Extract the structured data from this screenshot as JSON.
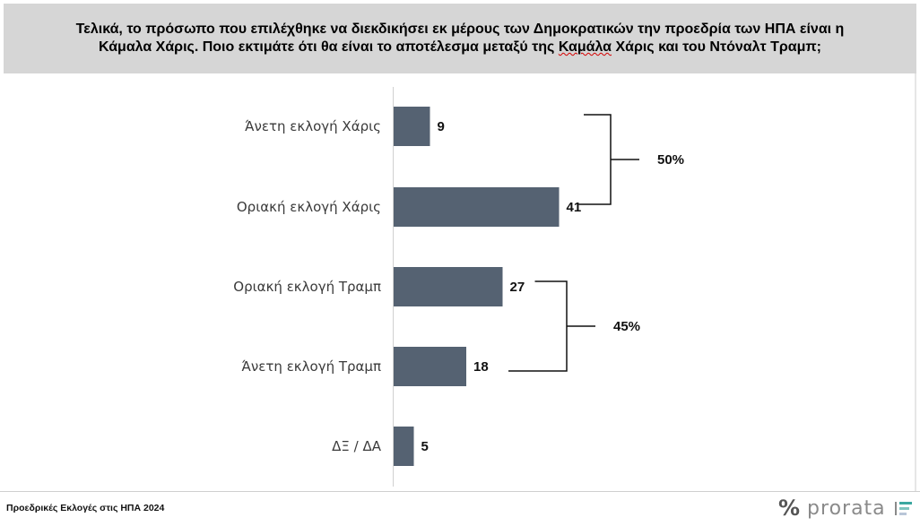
{
  "header": {
    "line1": "Τελικά, το πρόσωπο που επιλέχθηκε να διεκδικήσει εκ μέρους των Δημοκρατικών την προεδρία των ΗΠΑ είναι η",
    "line2_before": "Κάμαλα Χάρις. Ποιο εκτιμάτε ότι θα είναι το αποτέλεσμα μεταξύ της ",
    "line2_flagged": "Καμάλα",
    "line2_after": " Χάρις και του Ντόναλτ Τραμπ;"
  },
  "chart_data": {
    "type": "bar",
    "orientation": "horizontal",
    "categories": [
      "Άνετη εκλογή Χάρις",
      "Οριακή εκλογή Χάρις",
      "Οριακή εκλογή Τραμπ",
      "Άνετη εκλογή Τραμπ",
      "ΔΞ / ΔΑ"
    ],
    "values": [
      9,
      41,
      27,
      18,
      5
    ],
    "bar_color": "#556272",
    "groups": [
      {
        "label": "50%",
        "from": 0,
        "to": 1
      },
      {
        "label": "45%",
        "from": 2,
        "to": 3
      }
    ]
  },
  "footer": {
    "source": "Προεδρικές Εκλογές στις ΗΠΑ 2024",
    "logo_symbol": "%",
    "logo_name": "prorata",
    "logo_colors": [
      "#3ba7a0",
      "#7fc4bf",
      "#b9c6d8"
    ]
  }
}
